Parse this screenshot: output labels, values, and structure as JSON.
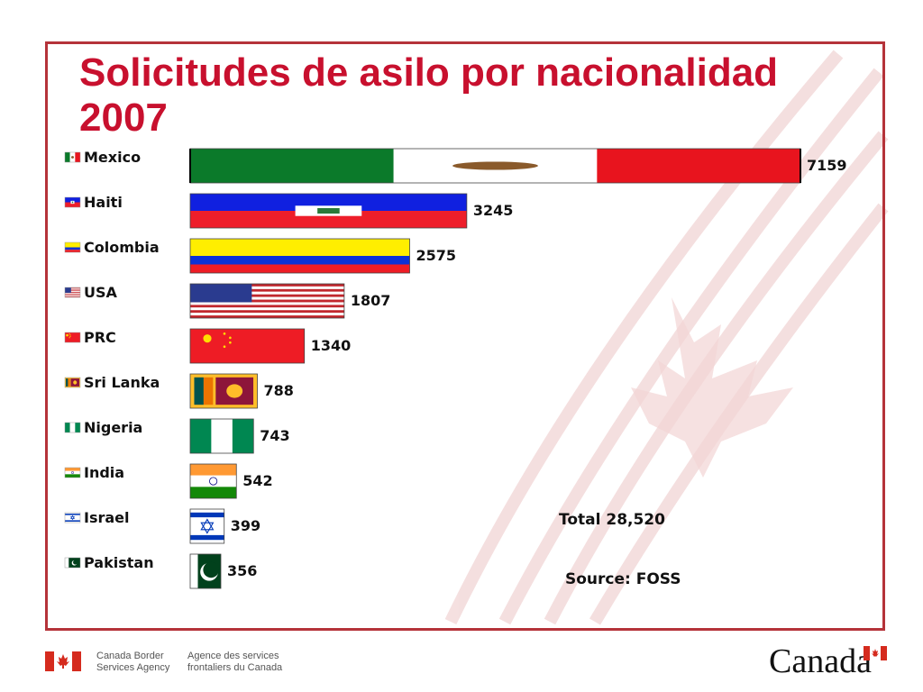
{
  "slide": {
    "title": "Solicitudes de asilo por nacionalidad 2007",
    "total_text": "Total 28,520",
    "source_text": "Source: FOSS",
    "accent_color": "#c8102e",
    "frame_color": "#b5333a"
  },
  "footer": {
    "agency_en": [
      "Canada Border",
      "Services Agency"
    ],
    "agency_fr": [
      "Agence des services",
      "frontaliers du Canada"
    ],
    "wordmark": "Canada"
  },
  "chart_data": {
    "type": "bar",
    "orientation": "horizontal",
    "title": "Solicitudes de asilo por nacionalidad 2007",
    "categories": [
      "Mexico",
      "Haiti",
      "Colombia",
      "USA",
      "PRC",
      "Sri Lanka",
      "Nigeria",
      "India",
      "Israel",
      "Pakistan"
    ],
    "values": [
      7159,
      3245,
      2575,
      1807,
      1340,
      788,
      743,
      542,
      399,
      356
    ],
    "value_labels": [
      "7159",
      "3245",
      "2575",
      "1807",
      "1340",
      "788",
      "743",
      "542",
      "399",
      "356"
    ],
    "flags": [
      "mexico-flag",
      "haiti-flag",
      "colombia-flag",
      "usa-flag",
      "prc-flag",
      "sri-lanka-flag",
      "nigeria-flag",
      "india-flag",
      "israel-flag",
      "pakistan-flag"
    ],
    "xlim": [
      0,
      7159
    ],
    "grid": false,
    "legend": "left"
  }
}
